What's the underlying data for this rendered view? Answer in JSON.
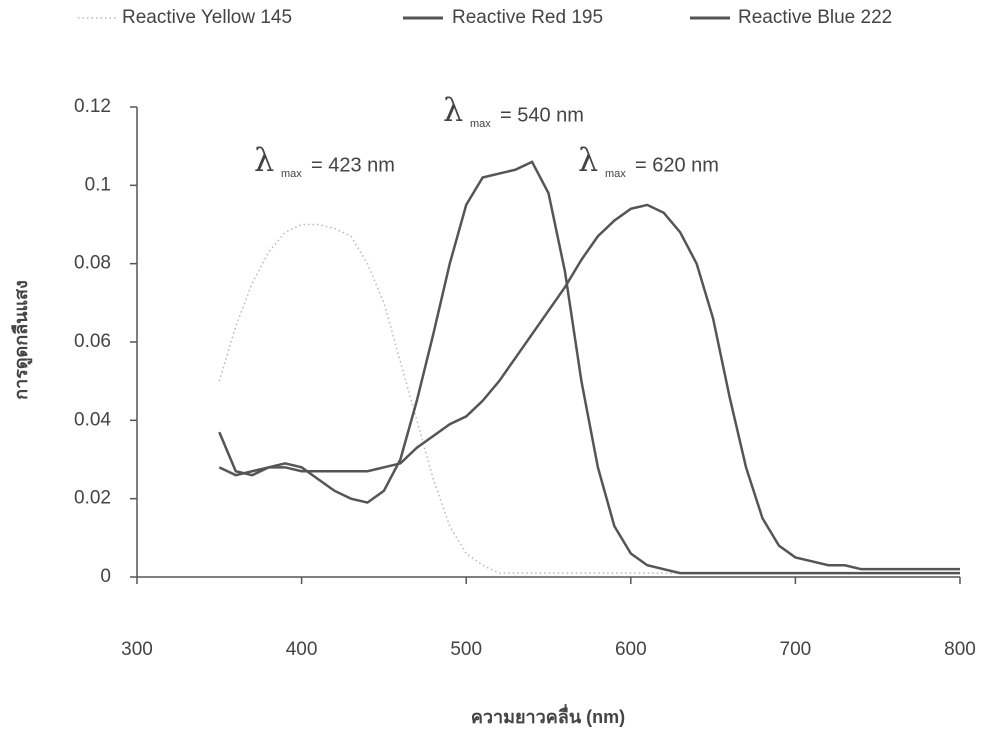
{
  "chart_data": {
    "type": "line",
    "x_label": "ความยาวคลื่น (nm)",
    "y_label": "การดูดกลืนแสง",
    "x": [
      350,
      360,
      370,
      380,
      390,
      400,
      410,
      420,
      430,
      440,
      450,
      460,
      470,
      480,
      490,
      500,
      510,
      520,
      530,
      540,
      550,
      560,
      570,
      580,
      590,
      600,
      610,
      620,
      630,
      640,
      650,
      660,
      670,
      680,
      690,
      700,
      710,
      720,
      730,
      740,
      750,
      760,
      770,
      780,
      790,
      800
    ],
    "series": [
      {
        "name": "Reactive Yellow 145",
        "color": "#b8b8b8",
        "style": "dotted",
        "values": [
          0.05,
          0.064,
          0.075,
          0.083,
          0.088,
          0.09,
          0.09,
          0.089,
          0.087,
          0.08,
          0.07,
          0.055,
          0.04,
          0.025,
          0.013,
          0.006,
          0.003,
          0.001,
          0.001,
          0.001,
          0.001,
          0.001,
          0.001,
          0.001,
          0.001,
          0.001,
          0.001,
          0.001,
          0.001,
          0.001,
          0.001,
          0.001,
          0.001,
          0.001,
          0.001,
          0.001,
          0.001,
          0.001,
          0.001,
          0.001,
          0.001,
          0.001,
          0.001,
          0.001,
          0.001,
          0.001
        ]
      },
      {
        "name": "Reactive Red 195",
        "color": "#555555",
        "style": "solid",
        "values": [
          0.037,
          0.027,
          0.026,
          0.028,
          0.029,
          0.028,
          0.025,
          0.022,
          0.02,
          0.019,
          0.022,
          0.03,
          0.045,
          0.062,
          0.08,
          0.095,
          0.102,
          0.103,
          0.104,
          0.106,
          0.098,
          0.078,
          0.05,
          0.028,
          0.013,
          0.006,
          0.003,
          0.002,
          0.001,
          0.001,
          0.001,
          0.001,
          0.001,
          0.001,
          0.001,
          0.001,
          0.001,
          0.001,
          0.001,
          0.001,
          0.001,
          0.001,
          0.001,
          0.001,
          0.001,
          0.001
        ]
      },
      {
        "name": "Reactive Blue 222",
        "color": "#555555",
        "style": "solid",
        "values": [
          0.028,
          0.026,
          0.027,
          0.028,
          0.028,
          0.027,
          0.027,
          0.027,
          0.027,
          0.027,
          0.028,
          0.029,
          0.033,
          0.036,
          0.039,
          0.041,
          0.045,
          0.05,
          0.056,
          0.062,
          0.068,
          0.074,
          0.081,
          0.087,
          0.091,
          0.094,
          0.095,
          0.093,
          0.088,
          0.08,
          0.066,
          0.046,
          0.028,
          0.015,
          0.008,
          0.005,
          0.004,
          0.003,
          0.003,
          0.002,
          0.002,
          0.002,
          0.002,
          0.002,
          0.002,
          0.002
        ]
      }
    ],
    "annotations": [
      {
        "symbol": "λ",
        "subscript": "max",
        "text": "= 540 nm"
      },
      {
        "symbol": "λ",
        "subscript": "max",
        "text": "= 423 nm"
      },
      {
        "symbol": "λ",
        "subscript": "max",
        "text": "= 620 nm"
      }
    ],
    "xlim": [
      300,
      800
    ],
    "xticks": [
      300,
      400,
      500,
      600,
      700,
      800
    ],
    "ylim": [
      0,
      0.12
    ],
    "yticks": [
      0,
      0.02,
      0.04,
      0.06,
      0.08,
      0.1,
      0.12
    ],
    "grid": false,
    "legend": "top"
  }
}
